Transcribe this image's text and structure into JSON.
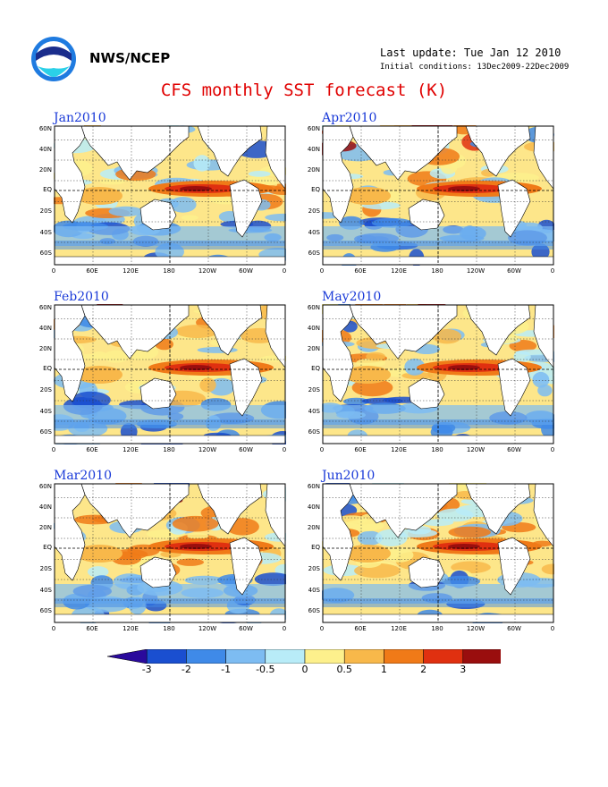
{
  "header": {
    "org": "NWS/NCEP",
    "last_update": "Last update: Tue Jan 12 2010",
    "initial_conditions": "Initial conditions: 13Dec2009-22Dec2009",
    "title": "CFS monthly SST forecast (K)"
  },
  "panels": [
    {
      "label": "Jan2010"
    },
    {
      "label": "Apr2010"
    },
    {
      "label": "Feb2010"
    },
    {
      "label": "May2010"
    },
    {
      "label": "Mar2010"
    },
    {
      "label": "Jun2010"
    }
  ],
  "lat_ticks": [
    "60N",
    "40N",
    "20N",
    "EQ",
    "20S",
    "40S",
    "60S"
  ],
  "lon_ticks": [
    "0",
    "60E",
    "120E",
    "180",
    "120W",
    "60W",
    "0"
  ],
  "colorbar": {
    "labels": [
      "-3",
      "-2",
      "-1",
      "-0.5",
      "0",
      "0.5",
      "1",
      "2",
      "3"
    ],
    "colors": [
      "#2a0a9c",
      "#1a4fd0",
      "#3f8ae8",
      "#7dbcf2",
      "#b8ecf8",
      "#fdf08c",
      "#f8b84a",
      "#f07a18",
      "#e03010",
      "#9a0e0e",
      "#6a3018"
    ]
  },
  "legend_colors": {
    "ocean_neutral": "#fde68a",
    "land": "#ffffff",
    "equator_line": "#000000"
  }
}
